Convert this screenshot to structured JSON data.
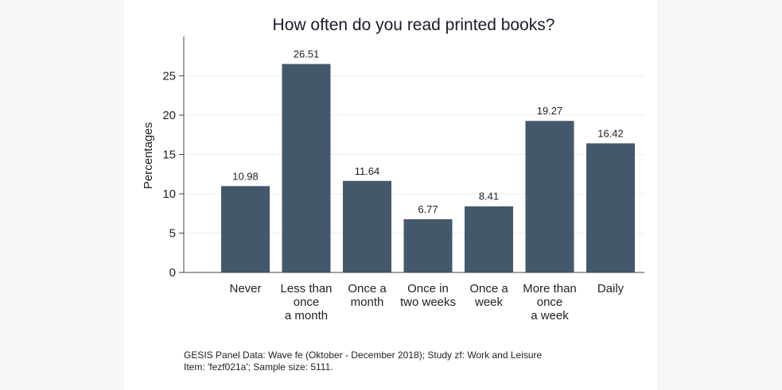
{
  "chart_data": {
    "type": "bar",
    "title": "How often do you read printed books?",
    "xlabel": "",
    "ylabel": "Percentages",
    "ylim": [
      0,
      30
    ],
    "yticks": [
      0,
      5,
      10,
      15,
      20,
      25
    ],
    "grid": true,
    "bar_color": "#44586c",
    "categories": [
      [
        "Never"
      ],
      [
        "Less than",
        "once",
        "a month"
      ],
      [
        "Once a",
        "month"
      ],
      [
        "Once in",
        "two weeks"
      ],
      [
        "Once a",
        "week"
      ],
      [
        "More than",
        "once",
        "a week"
      ],
      [
        "Daily"
      ]
    ],
    "values": [
      10.98,
      26.51,
      11.64,
      6.77,
      8.41,
      19.27,
      16.42
    ],
    "value_labels": [
      "10.98",
      "26.51",
      "11.64",
      "6.77",
      "8.41",
      "19.27",
      "16.42"
    ]
  },
  "notes": {
    "line1": "GESIS Panel Data: Wave fe (Oktober - December 2018); Study zf:  Work and Leisure",
    "line2": "Item: 'fezf021a'; Sample size: 5111."
  }
}
